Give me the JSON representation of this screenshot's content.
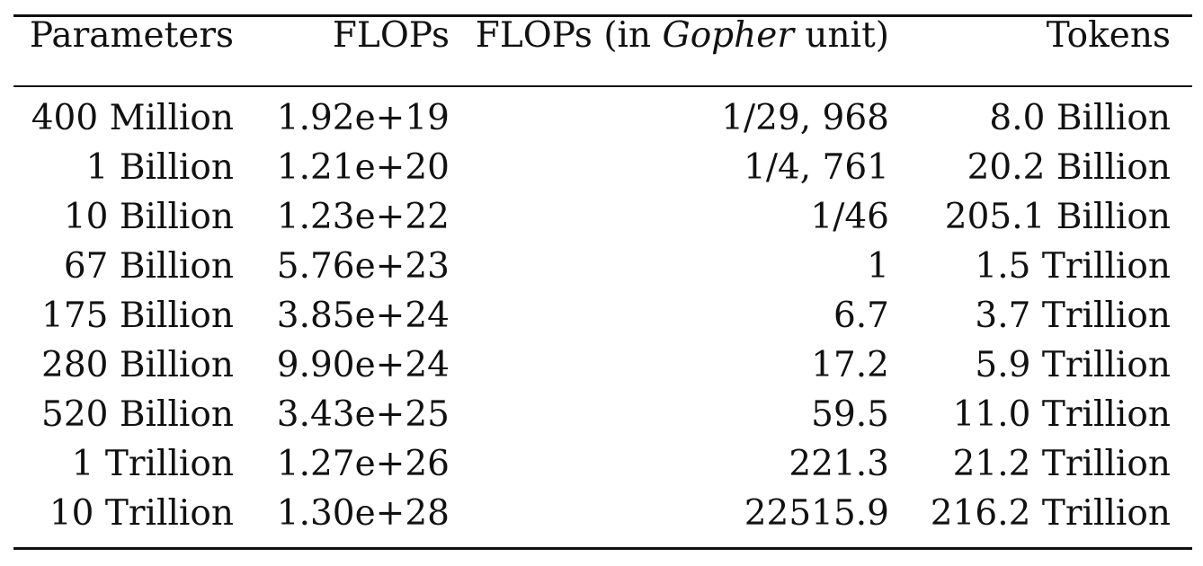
{
  "table": {
    "headers": {
      "parameters": "Parameters",
      "flops": "FLOPs",
      "gopher_prefix": "FLOPs (in ",
      "gopher_italic": "Gopher",
      "gopher_suffix": " unit)",
      "tokens": "Tokens"
    },
    "rows": [
      {
        "parameters": "400 Million",
        "flops": "1.92e+19",
        "gopher_units": "1/29, 968",
        "tokens": "8.0 Billion"
      },
      {
        "parameters": "1 Billion",
        "flops": "1.21e+20",
        "gopher_units": "1/4, 761",
        "tokens": "20.2 Billion"
      },
      {
        "parameters": "10 Billion",
        "flops": "1.23e+22",
        "gopher_units": "1/46",
        "tokens": "205.1 Billion"
      },
      {
        "parameters": "67 Billion",
        "flops": "5.76e+23",
        "gopher_units": "1",
        "tokens": "1.5 Trillion"
      },
      {
        "parameters": "175 Billion",
        "flops": "3.85e+24",
        "gopher_units": "6.7",
        "tokens": "3.7 Trillion"
      },
      {
        "parameters": "280 Billion",
        "flops": "9.90e+24",
        "gopher_units": "17.2",
        "tokens": "5.9 Trillion"
      },
      {
        "parameters": "520 Billion",
        "flops": "3.43e+25",
        "gopher_units": "59.5",
        "tokens": "11.0 Trillion"
      },
      {
        "parameters": "1 Trillion",
        "flops": "1.27e+26",
        "gopher_units": "221.3",
        "tokens": "21.2 Trillion"
      },
      {
        "parameters": "10 Trillion",
        "flops": "1.30e+28",
        "gopher_units": "22515.9",
        "tokens": "216.2 Trillion"
      }
    ]
  }
}
